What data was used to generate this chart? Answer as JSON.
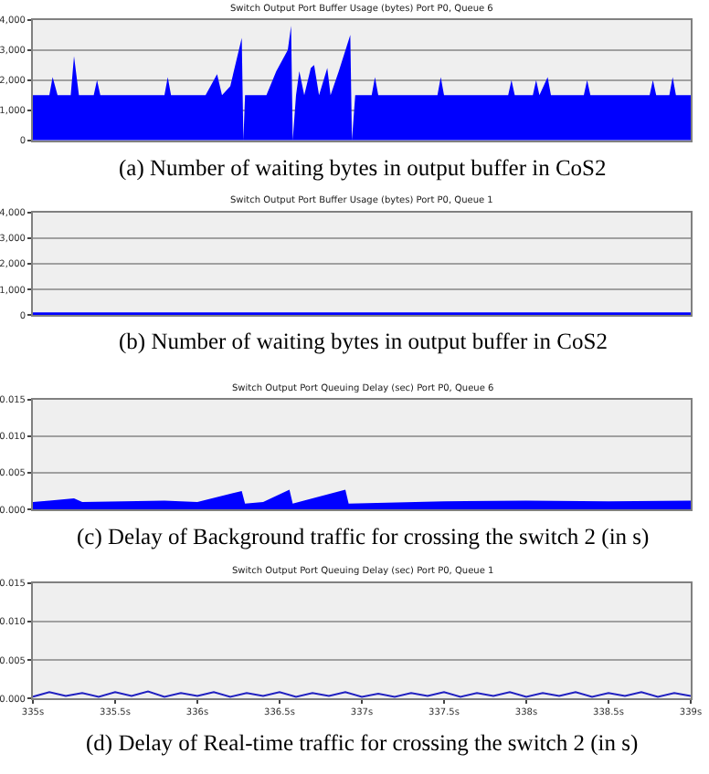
{
  "chart_data": [
    {
      "type": "area",
      "title": "Switch Output Port Buffer Usage (bytes) Port P0, Queue 6",
      "annotations": [
        "(a) Number of waiting bytes in output buffer in CoS2"
      ],
      "color": "#0000ff",
      "grid": "y",
      "tick_labels": "y",
      "xlim": [
        335,
        339
      ],
      "ylim": [
        0,
        4000
      ],
      "yticks": [
        0,
        {
          "value": 1000,
          "label": "1,000"
        },
        {
          "value": 2000,
          "label": "2,000"
        },
        {
          "value": 3000,
          "label": "3,000"
        },
        {
          "value": 4000,
          "label": "4,000"
        }
      ],
      "x": [
        335.0,
        335.1,
        335.12,
        335.15,
        335.23,
        335.25,
        335.28,
        335.37,
        335.39,
        335.41,
        335.8,
        335.82,
        335.84,
        336.05,
        336.12,
        336.15,
        336.2,
        336.27,
        336.28,
        336.29,
        336.42,
        336.48,
        336.55,
        336.57,
        336.58,
        336.6,
        336.62,
        336.65,
        336.69,
        336.71,
        336.74,
        336.79,
        336.81,
        336.86,
        336.93,
        336.94,
        336.96,
        337.06,
        337.08,
        337.1,
        337.46,
        337.48,
        337.5,
        337.89,
        337.91,
        337.93,
        338.04,
        338.06,
        338.08,
        338.13,
        338.15,
        338.35,
        338.37,
        338.39,
        338.75,
        338.77,
        338.79,
        338.87,
        338.89,
        338.91,
        339.0
      ],
      "values": [
        1500,
        1500,
        2100,
        1500,
        1500,
        2800,
        1500,
        1500,
        2000,
        1500,
        1500,
        2100,
        1500,
        1500,
        2200,
        1500,
        1800,
        3400,
        0,
        1500,
        1500,
        2300,
        3000,
        3800,
        0,
        1500,
        2300,
        1500,
        2400,
        2500,
        1500,
        2400,
        1500,
        2300,
        3500,
        0,
        1500,
        1500,
        2100,
        1500,
        1500,
        2100,
        1500,
        1500,
        2000,
        1500,
        1500,
        2000,
        1500,
        2100,
        1500,
        1500,
        2000,
        1500,
        1500,
        2000,
        1500,
        1500,
        2100,
        1500,
        1500
      ]
    },
    {
      "type": "area",
      "title": "Switch Output Port Buffer Usage (bytes) Port P0, Queue 1",
      "annotations": [
        "(b) Number of waiting bytes in output buffer in CoS2"
      ],
      "color": "#0000ff",
      "grid": "y",
      "tick_labels": "y",
      "xlim": [
        335,
        339
      ],
      "ylim": [
        0,
        4000
      ],
      "yticks": [
        0,
        {
          "value": 1000,
          "label": "1,000"
        },
        {
          "value": 2000,
          "label": "2,000"
        },
        {
          "value": 3000,
          "label": "3,000"
        },
        {
          "value": 4000,
          "label": "4,000"
        }
      ],
      "x": [
        335.0,
        339.0
      ],
      "values": [
        100,
        100
      ]
    },
    {
      "type": "area",
      "title": "Switch Output Port Queuing Delay (sec) Port P0, Queue 6",
      "annotations": [
        "(c) Delay of Background traffic for crossing the switch 2 (in s)"
      ],
      "color": "#0000ff",
      "grid": "y",
      "tick_labels": "y",
      "xlim": [
        335,
        339
      ],
      "ylim": [
        0,
        0.015
      ],
      "yticks": [
        {
          "value": 0,
          "label": "0.000"
        },
        {
          "value": 0.005,
          "label": "0.005"
        },
        {
          "value": 0.01,
          "label": "0.010"
        },
        {
          "value": 0.015,
          "label": "0.015"
        }
      ],
      "x": [
        335.0,
        335.1,
        335.25,
        335.3,
        335.8,
        336.0,
        336.27,
        336.29,
        336.4,
        336.56,
        336.58,
        336.7,
        336.9,
        336.92,
        337.5,
        338.0,
        338.5,
        339.0
      ],
      "values": [
        0.001,
        0.0012,
        0.0015,
        0.001,
        0.0012,
        0.001,
        0.0025,
        0.0008,
        0.001,
        0.0027,
        0.0008,
        0.0015,
        0.0027,
        0.0008,
        0.0011,
        0.0012,
        0.0011,
        0.0012
      ]
    },
    {
      "type": "line",
      "title": "Switch Output Port Queuing Delay (sec) Port P0, Queue 1",
      "annotations": [
        "(d) Delay of Real-time traffic for crossing the switch 2 (in s)"
      ],
      "color": "#2020c0",
      "grid": "y",
      "xlim": [
        335,
        339
      ],
      "ylim": [
        0,
        0.015
      ],
      "yticks": [
        {
          "value": 0,
          "label": "0.000"
        },
        {
          "value": 0.005,
          "label": "0.005"
        },
        {
          "value": 0.01,
          "label": "0.010"
        },
        {
          "value": 0.015,
          "label": "0.015"
        }
      ],
      "xticks": [
        {
          "value": 335,
          "label": "335s"
        },
        {
          "value": 335.5,
          "label": "335.5s"
        },
        {
          "value": 336,
          "label": "336s"
        },
        {
          "value": 336.5,
          "label": "336.5s"
        },
        {
          "value": 337,
          "label": "337s"
        },
        {
          "value": 337.5,
          "label": "337.5s"
        },
        {
          "value": 338,
          "label": "338s"
        },
        {
          "value": 338.5,
          "label": "338.5s"
        },
        {
          "value": 339,
          "label": "339s"
        }
      ],
      "x": [
        335.0,
        335.1,
        335.2,
        335.3,
        335.4,
        335.5,
        335.6,
        335.7,
        335.8,
        335.9,
        336.0,
        336.1,
        336.2,
        336.3,
        336.4,
        336.5,
        336.6,
        336.7,
        336.8,
        336.9,
        337.0,
        337.1,
        337.2,
        337.3,
        337.4,
        337.5,
        337.6,
        337.7,
        337.8,
        337.9,
        338.0,
        338.1,
        338.2,
        338.3,
        338.4,
        338.5,
        338.6,
        338.7,
        338.8,
        338.9,
        339.0
      ],
      "values": [
        0.0002,
        0.0008,
        0.0003,
        0.0007,
        0.0002,
        0.0008,
        0.0003,
        0.0009,
        0.0002,
        0.0007,
        0.0003,
        0.0008,
        0.0002,
        0.0007,
        0.0003,
        0.0008,
        0.0002,
        0.0007,
        0.0003,
        0.0008,
        0.0002,
        0.0006,
        0.0002,
        0.0007,
        0.0003,
        0.0008,
        0.0002,
        0.0007,
        0.0003,
        0.0008,
        0.0002,
        0.0007,
        0.0003,
        0.0008,
        0.0002,
        0.0007,
        0.0003,
        0.0008,
        0.0002,
        0.0007,
        0.0003
      ]
    }
  ]
}
